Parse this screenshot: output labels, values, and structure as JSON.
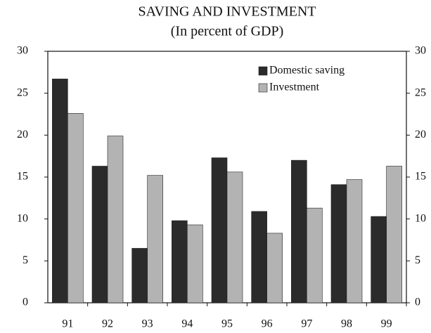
{
  "chart_data": {
    "type": "bar",
    "title": "SAVING AND INVESTMENT",
    "subtitle": "(In percent of GDP)",
    "categories": [
      "91",
      "92",
      "93",
      "94",
      "95",
      "96",
      "97",
      "98",
      "99"
    ],
    "series": [
      {
        "name": "Domestic saving",
        "color": "#2b2b2b",
        "values": [
          26.7,
          16.3,
          6.5,
          9.8,
          17.3,
          10.9,
          17.0,
          14.1,
          10.3
        ]
      },
      {
        "name": "Investment",
        "color": "#b3b3b3",
        "values": [
          22.6,
          19.9,
          15.2,
          9.3,
          15.6,
          8.3,
          11.3,
          14.7,
          16.3
        ]
      }
    ],
    "ylim": [
      0,
      30
    ],
    "yticks": [
      0,
      5,
      10,
      15,
      20,
      25,
      30
    ],
    "y2lim": [
      0,
      30
    ],
    "y2ticks": [
      0,
      5,
      10,
      15,
      20,
      25,
      30
    ],
    "legend": "upper right"
  }
}
